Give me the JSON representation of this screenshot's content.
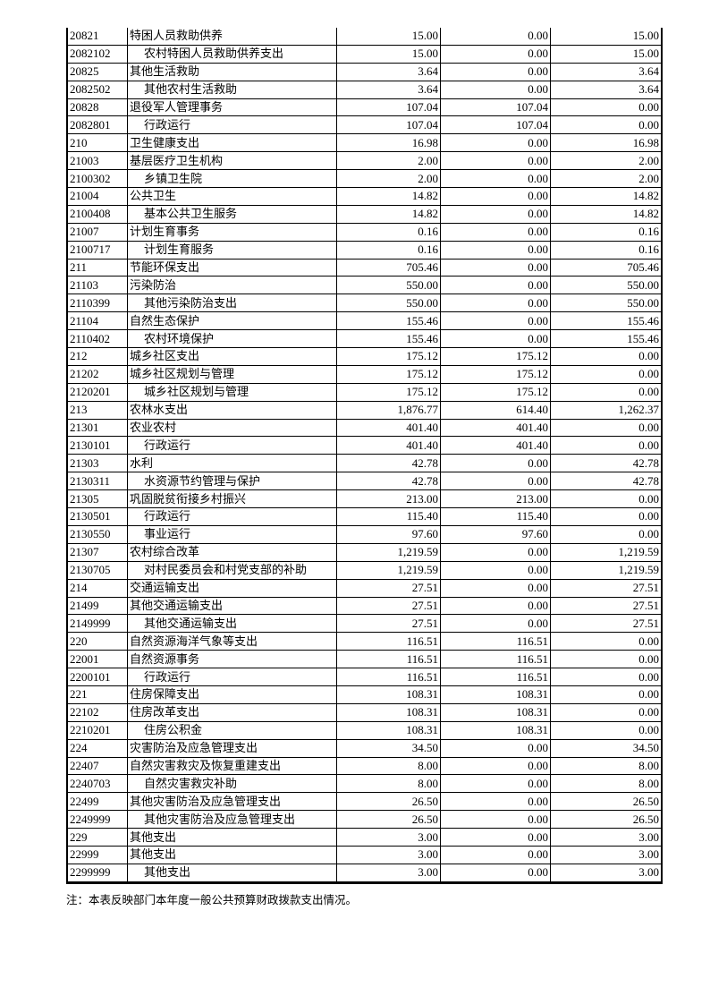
{
  "rows": [
    {
      "code": "20821",
      "name": "特困人员救助供养",
      "total": "15.00",
      "basic": "0.00",
      "project": "15.00",
      "sub": false
    },
    {
      "code": "2082102",
      "name": "农村特困人员救助供养支出",
      "total": "15.00",
      "basic": "0.00",
      "project": "15.00",
      "sub": true
    },
    {
      "code": "20825",
      "name": "其他生活救助",
      "total": "3.64",
      "basic": "0.00",
      "project": "3.64",
      "sub": false
    },
    {
      "code": "2082502",
      "name": "其他农村生活救助",
      "total": "3.64",
      "basic": "0.00",
      "project": "3.64",
      "sub": true
    },
    {
      "code": "20828",
      "name": "退役军人管理事务",
      "total": "107.04",
      "basic": "107.04",
      "project": "0.00",
      "sub": false
    },
    {
      "code": "2082801",
      "name": "行政运行",
      "total": "107.04",
      "basic": "107.04",
      "project": "0.00",
      "sub": true
    },
    {
      "code": "210",
      "name": "卫生健康支出",
      "total": "16.98",
      "basic": "0.00",
      "project": "16.98",
      "sub": false
    },
    {
      "code": "21003",
      "name": "基层医疗卫生机构",
      "total": "2.00",
      "basic": "0.00",
      "project": "2.00",
      "sub": false
    },
    {
      "code": "2100302",
      "name": "乡镇卫生院",
      "total": "2.00",
      "basic": "0.00",
      "project": "2.00",
      "sub": true
    },
    {
      "code": "21004",
      "name": "公共卫生",
      "total": "14.82",
      "basic": "0.00",
      "project": "14.82",
      "sub": false
    },
    {
      "code": "2100408",
      "name": "基本公共卫生服务",
      "total": "14.82",
      "basic": "0.00",
      "project": "14.82",
      "sub": true
    },
    {
      "code": "21007",
      "name": "计划生育事务",
      "total": "0.16",
      "basic": "0.00",
      "project": "0.16",
      "sub": false
    },
    {
      "code": "2100717",
      "name": "计划生育服务",
      "total": "0.16",
      "basic": "0.00",
      "project": "0.16",
      "sub": true
    },
    {
      "code": "211",
      "name": "节能环保支出",
      "total": "705.46",
      "basic": "0.00",
      "project": "705.46",
      "sub": false
    },
    {
      "code": "21103",
      "name": "污染防治",
      "total": "550.00",
      "basic": "0.00",
      "project": "550.00",
      "sub": false
    },
    {
      "code": "2110399",
      "name": "其他污染防治支出",
      "total": "550.00",
      "basic": "0.00",
      "project": "550.00",
      "sub": true
    },
    {
      "code": "21104",
      "name": "自然生态保护",
      "total": "155.46",
      "basic": "0.00",
      "project": "155.46",
      "sub": false
    },
    {
      "code": "2110402",
      "name": "农村环境保护",
      "total": "155.46",
      "basic": "0.00",
      "project": "155.46",
      "sub": true
    },
    {
      "code": "212",
      "name": "城乡社区支出",
      "total": "175.12",
      "basic": "175.12",
      "project": "0.00",
      "sub": false
    },
    {
      "code": "21202",
      "name": "城乡社区规划与管理",
      "total": "175.12",
      "basic": "175.12",
      "project": "0.00",
      "sub": false
    },
    {
      "code": "2120201",
      "name": "城乡社区规划与管理",
      "total": "175.12",
      "basic": "175.12",
      "project": "0.00",
      "sub": true
    },
    {
      "code": "213",
      "name": "农林水支出",
      "total": "1,876.77",
      "basic": "614.40",
      "project": "1,262.37",
      "sub": false
    },
    {
      "code": "21301",
      "name": "农业农村",
      "total": "401.40",
      "basic": "401.40",
      "project": "0.00",
      "sub": false
    },
    {
      "code": "2130101",
      "name": "行政运行",
      "total": "401.40",
      "basic": "401.40",
      "project": "0.00",
      "sub": true
    },
    {
      "code": "21303",
      "name": "水利",
      "total": "42.78",
      "basic": "0.00",
      "project": "42.78",
      "sub": false
    },
    {
      "code": "2130311",
      "name": "水资源节约管理与保护",
      "total": "42.78",
      "basic": "0.00",
      "project": "42.78",
      "sub": true
    },
    {
      "code": "21305",
      "name": "巩固脱贫衔接乡村振兴",
      "total": "213.00",
      "basic": "213.00",
      "project": "0.00",
      "sub": false
    },
    {
      "code": "2130501",
      "name": "行政运行",
      "total": "115.40",
      "basic": "115.40",
      "project": "0.00",
      "sub": true
    },
    {
      "code": "2130550",
      "name": "事业运行",
      "total": "97.60",
      "basic": "97.60",
      "project": "0.00",
      "sub": true
    },
    {
      "code": "21307",
      "name": "农村综合改革",
      "total": "1,219.59",
      "basic": "0.00",
      "project": "1,219.59",
      "sub": false
    },
    {
      "code": "2130705",
      "name": "对村民委员会和村党支部的补助",
      "total": "1,219.59",
      "basic": "0.00",
      "project": "1,219.59",
      "sub": true
    },
    {
      "code": "214",
      "name": "交通运输支出",
      "total": "27.51",
      "basic": "0.00",
      "project": "27.51",
      "sub": false
    },
    {
      "code": "21499",
      "name": "其他交通运输支出",
      "total": "27.51",
      "basic": "0.00",
      "project": "27.51",
      "sub": false
    },
    {
      "code": "2149999",
      "name": "其他交通运输支出",
      "total": "27.51",
      "basic": "0.00",
      "project": "27.51",
      "sub": true
    },
    {
      "code": "220",
      "name": "自然资源海洋气象等支出",
      "total": "116.51",
      "basic": "116.51",
      "project": "0.00",
      "sub": false
    },
    {
      "code": "22001",
      "name": "自然资源事务",
      "total": "116.51",
      "basic": "116.51",
      "project": "0.00",
      "sub": false
    },
    {
      "code": "2200101",
      "name": "行政运行",
      "total": "116.51",
      "basic": "116.51",
      "project": "0.00",
      "sub": true
    },
    {
      "code": "221",
      "name": "住房保障支出",
      "total": "108.31",
      "basic": "108.31",
      "project": "0.00",
      "sub": false
    },
    {
      "code": "22102",
      "name": "住房改革支出",
      "total": "108.31",
      "basic": "108.31",
      "project": "0.00",
      "sub": false
    },
    {
      "code": "2210201",
      "name": "住房公积金",
      "total": "108.31",
      "basic": "108.31",
      "project": "0.00",
      "sub": true
    },
    {
      "code": "224",
      "name": "灾害防治及应急管理支出",
      "total": "34.50",
      "basic": "0.00",
      "project": "34.50",
      "sub": false
    },
    {
      "code": "22407",
      "name": "自然灾害救灾及恢复重建支出",
      "total": "8.00",
      "basic": "0.00",
      "project": "8.00",
      "sub": false
    },
    {
      "code": "2240703",
      "name": "自然灾害救灾补助",
      "total": "8.00",
      "basic": "0.00",
      "project": "8.00",
      "sub": true
    },
    {
      "code": "22499",
      "name": "其他灾害防治及应急管理支出",
      "total": "26.50",
      "basic": "0.00",
      "project": "26.50",
      "sub": false
    },
    {
      "code": "2249999",
      "name": "其他灾害防治及应急管理支出",
      "total": "26.50",
      "basic": "0.00",
      "project": "26.50",
      "sub": true
    },
    {
      "code": "229",
      "name": "其他支出",
      "total": "3.00",
      "basic": "0.00",
      "project": "3.00",
      "sub": false
    },
    {
      "code": "22999",
      "name": "其他支出",
      "total": "3.00",
      "basic": "0.00",
      "project": "3.00",
      "sub": false
    },
    {
      "code": "2299999",
      "name": "其他支出",
      "total": "3.00",
      "basic": "0.00",
      "project": "3.00",
      "sub": true
    }
  ],
  "note": "注：本表反映部门本年度一般公共预算财政拨款支出情况。"
}
